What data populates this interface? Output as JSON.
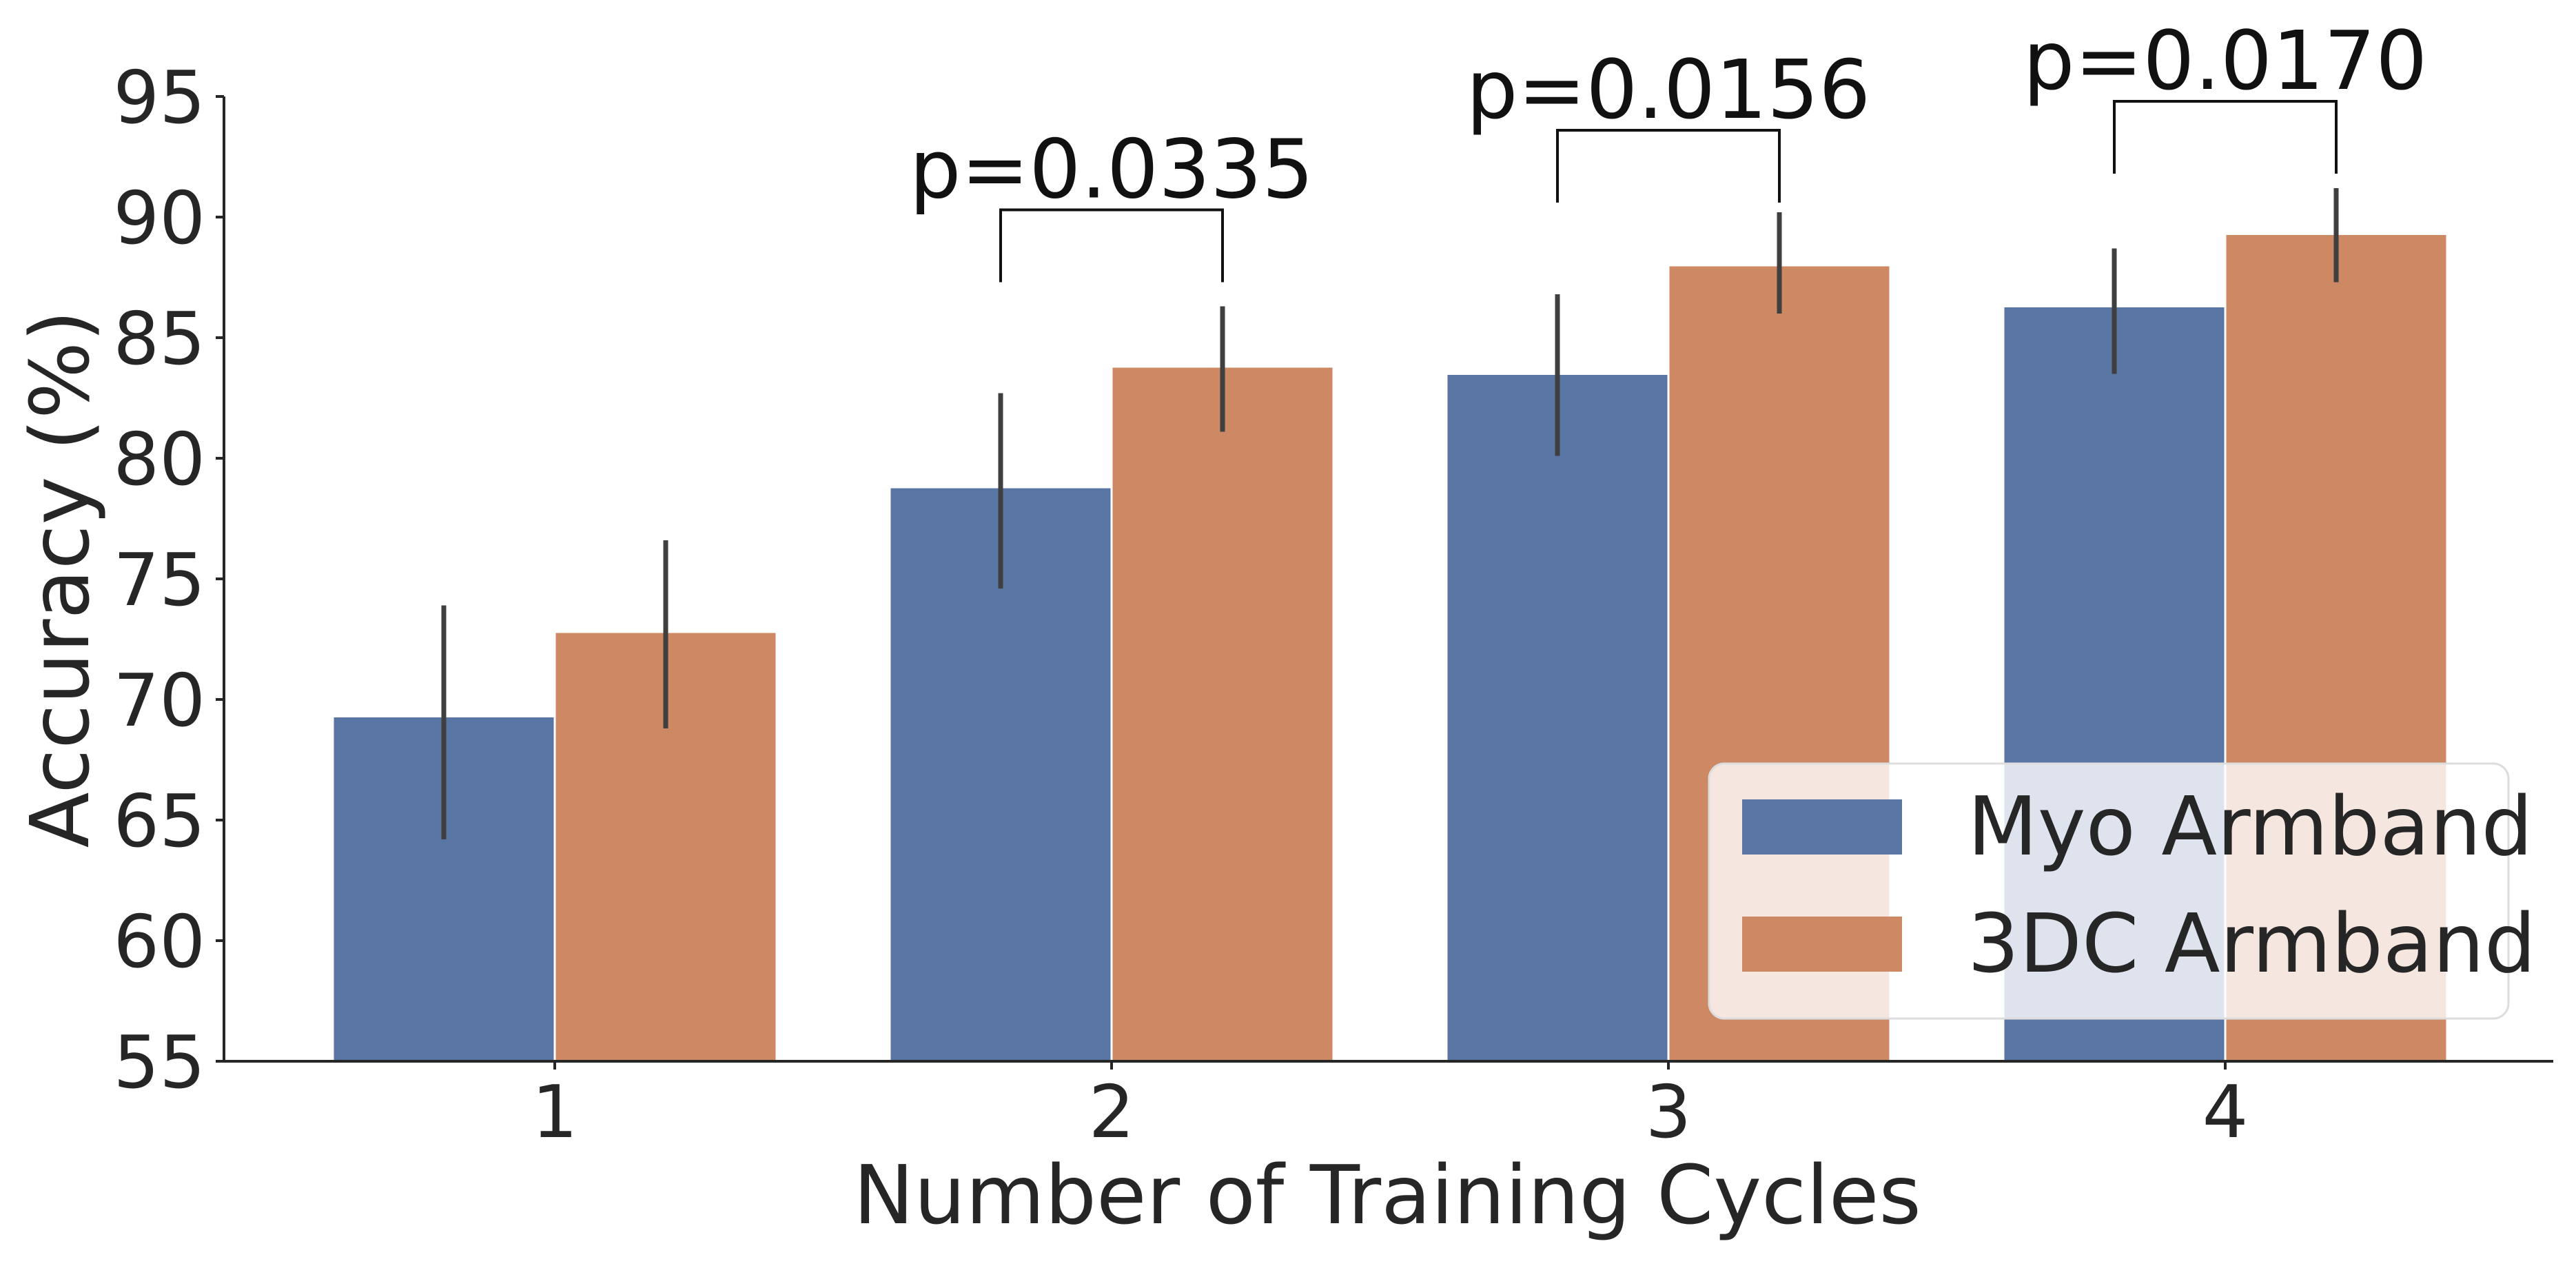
{
  "chart_data": {
    "type": "bar",
    "title": "",
    "xlabel": "Number of Training Cycles",
    "ylabel": "Accuracy (%)",
    "categories": [
      "1",
      "2",
      "3",
      "4"
    ],
    "ylim": [
      55,
      95
    ],
    "yticks": [
      "55",
      "60",
      "65",
      "70",
      "75",
      "80",
      "85",
      "90",
      "95"
    ],
    "grid": false,
    "legend_position": "bottom-right",
    "series": [
      {
        "name": "Myo Armband",
        "color": "#5975a4",
        "values": [
          69.3,
          78.8,
          83.5,
          86.3
        ],
        "err_low": [
          64.2,
          74.6,
          80.1,
          83.5
        ],
        "err_high": [
          73.9,
          82.7,
          86.8,
          88.7
        ]
      },
      {
        "name": "3DC Armband",
        "color": "#cc8963",
        "values": [
          72.8,
          83.8,
          88.0,
          89.3
        ],
        "err_low": [
          68.8,
          81.1,
          86.0,
          87.3
        ],
        "err_high": [
          76.6,
          86.3,
          90.2,
          91.2
        ]
      }
    ],
    "annotations": [
      {
        "category": "2",
        "text": "p=0.0335",
        "bracket_y": 90.3,
        "left_end": 87.3,
        "right_end": 87.3
      },
      {
        "category": "3",
        "text": "p=0.0156",
        "bracket_y": 93.6,
        "left_end": 90.6,
        "right_end": 90.6
      },
      {
        "category": "4",
        "text": "p=0.0170",
        "bracket_y": 94.8,
        "left_end": 91.8,
        "right_end": 91.8
      }
    ]
  }
}
